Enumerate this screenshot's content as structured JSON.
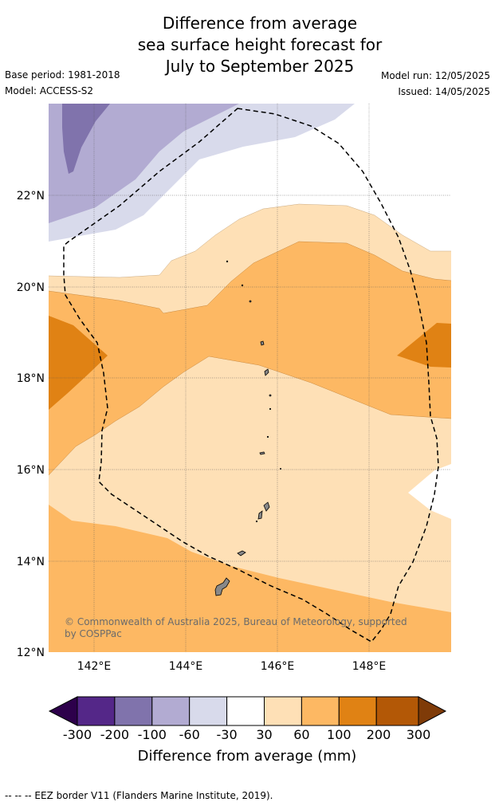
{
  "title": {
    "line1": "Difference from average",
    "line2": "sea surface height forecast for",
    "line3": "July to September 2025"
  },
  "meta": {
    "base_period": "Base period: 1981-2018",
    "model": "Model: ACCESS-S2",
    "model_run": "Model run: 12/05/2025",
    "issued": "Issued: 14/05/2025"
  },
  "axes": {
    "lat_labels": [
      "22°N",
      "20°N",
      "18°N",
      "16°N",
      "14°N",
      "12°N"
    ],
    "lon_labels": [
      "142°E",
      "144°E",
      "146°E",
      "148°E"
    ]
  },
  "copyright": {
    "line1": "© Commonwealth of Australia 2025, Bureau of Meteorology, supported",
    "line2": "by COSPPac"
  },
  "colorbar": {
    "ticks": [
      "-300",
      "-200",
      "-100",
      "-60",
      "-30",
      "30",
      "60",
      "100",
      "200",
      "300"
    ],
    "label": "Difference from average (mm)",
    "colors": {
      "under": "#2d004b",
      "bins": [
        "#542788",
        "#8073ac",
        "#b2abd2",
        "#d8daeb",
        "#ffffff",
        "#fee0b6",
        "#fdb863",
        "#e08214",
        "#b35806"
      ],
      "over": "#7f3b08"
    }
  },
  "footer": "-- -- -- EEZ border V11 (Flanders Marine Institute, 2019)."
}
